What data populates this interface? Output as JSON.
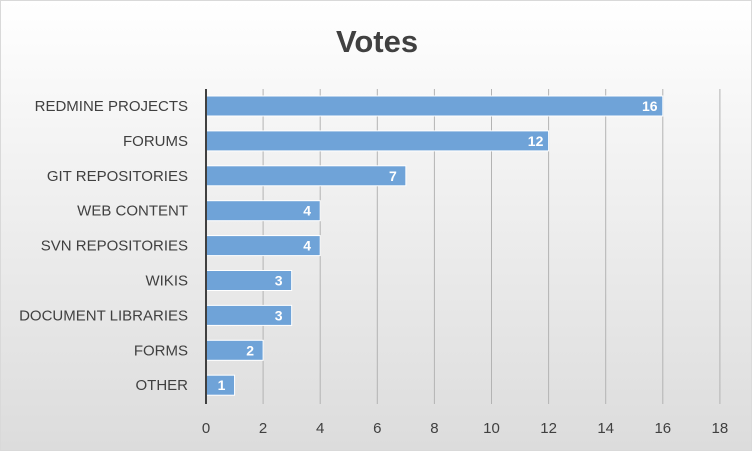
{
  "chart_data": {
    "type": "bar",
    "orientation": "horizontal",
    "title": "Votes",
    "categories": [
      "REDMINE PROJECTS",
      "FORUMS",
      "GIT REPOSITORIES",
      "WEB CONTENT",
      "SVN REPOSITORIES",
      "WIKIS",
      "DOCUMENT LIBRARIES",
      "FORMS",
      "OTHER"
    ],
    "values": [
      16,
      12,
      7,
      4,
      4,
      3,
      3,
      2,
      1
    ],
    "xlim": [
      0,
      18
    ],
    "xticks": [
      "0",
      "2",
      "4",
      "6",
      "8",
      "10",
      "12",
      "14",
      "16",
      "18"
    ],
    "grid": "vertical",
    "data_labels": true,
    "bar_color": "#6fa3d8"
  }
}
